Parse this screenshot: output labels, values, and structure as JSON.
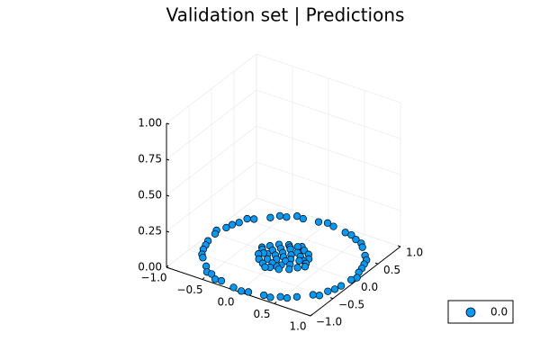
{
  "chart_data": {
    "type": "scatter",
    "title": "Validation set | Predictions",
    "xlabel": "",
    "ylabel": "",
    "zlabel": "",
    "xlim": [
      -1.0,
      1.0
    ],
    "ylim": [
      -1.0,
      1.0
    ],
    "zlim": [
      0.0,
      1.0
    ],
    "x_ticks": [
      "−1.0",
      "−0.5",
      "0.0",
      "0.5",
      "1.0"
    ],
    "y_ticks": [
      "−1.0",
      "−0.5",
      "0.0",
      "0.5",
      "1.0"
    ],
    "z_ticks": [
      "0.00",
      "0.25",
      "0.50",
      "0.75",
      "1.00"
    ],
    "grid": true,
    "legend_position": "bottom-right",
    "series": [
      {
        "name": "0.0",
        "color": "#009af9",
        "points": [
          [
            0.94,
            0.0,
            0
          ],
          [
            0.92,
            0.2,
            0
          ],
          [
            0.87,
            0.4,
            0
          ],
          [
            0.77,
            0.58,
            0
          ],
          [
            0.64,
            0.73,
            0
          ],
          [
            0.48,
            0.84,
            0
          ],
          [
            0.29,
            0.91,
            0
          ],
          [
            0.1,
            0.95,
            0
          ],
          [
            -0.1,
            0.94,
            0
          ],
          [
            -0.29,
            0.9,
            0
          ],
          [
            -0.47,
            0.82,
            0
          ],
          [
            -0.62,
            0.7,
            0
          ],
          [
            -0.76,
            0.56,
            0
          ],
          [
            -0.86,
            0.39,
            0
          ],
          [
            -0.92,
            0.2,
            0
          ],
          [
            -0.95,
            0.0,
            0
          ],
          [
            -0.93,
            -0.19,
            0
          ],
          [
            -0.87,
            -0.39,
            0
          ],
          [
            -0.77,
            -0.56,
            0
          ],
          [
            -0.63,
            -0.71,
            0
          ],
          [
            -0.48,
            -0.83,
            0
          ],
          [
            -0.3,
            -0.9,
            0
          ],
          [
            -0.1,
            -0.95,
            0
          ],
          [
            0.1,
            -0.94,
            0
          ],
          [
            0.29,
            -0.9,
            0
          ],
          [
            0.47,
            -0.82,
            0
          ],
          [
            0.63,
            -0.71,
            0
          ],
          [
            0.76,
            -0.56,
            0
          ],
          [
            0.86,
            -0.39,
            0
          ],
          [
            0.92,
            -0.19,
            0
          ],
          [
            0.97,
            0.08,
            0
          ],
          [
            0.84,
            0.5,
            0
          ],
          [
            0.58,
            0.8,
            0
          ],
          [
            0.0,
            0.98,
            0
          ],
          [
            -0.55,
            0.8,
            0
          ],
          [
            -0.83,
            0.52,
            0
          ],
          [
            -0.98,
            0.08,
            0
          ],
          [
            -0.82,
            -0.5,
            0
          ],
          [
            -0.55,
            -0.82,
            0
          ],
          [
            0.02,
            -0.97,
            0
          ],
          [
            0.55,
            -0.8,
            0
          ],
          [
            0.83,
            -0.53,
            0
          ],
          [
            0.9,
            0.3,
            0
          ],
          [
            0.38,
            0.9,
            0
          ],
          [
            -0.38,
            0.91,
            0
          ],
          [
            -0.9,
            0.3,
            0
          ],
          [
            -0.9,
            -0.29,
            0
          ],
          [
            -0.38,
            -0.91,
            0
          ],
          [
            0.38,
            -0.9,
            0
          ],
          [
            0.9,
            -0.3,
            0
          ],
          [
            0.3,
            0.02,
            0
          ],
          [
            0.27,
            0.13,
            0
          ],
          [
            0.21,
            0.22,
            0
          ],
          [
            0.12,
            0.27,
            0
          ],
          [
            0.01,
            0.3,
            0
          ],
          [
            -0.1,
            0.28,
            0
          ],
          [
            -0.2,
            0.22,
            0
          ],
          [
            -0.27,
            0.13,
            0
          ],
          [
            -0.3,
            0.01,
            0
          ],
          [
            -0.28,
            -0.11,
            0
          ],
          [
            -0.21,
            -0.21,
            0
          ],
          [
            -0.12,
            -0.27,
            0
          ],
          [
            0.0,
            -0.3,
            0
          ],
          [
            0.11,
            -0.28,
            0
          ],
          [
            0.21,
            -0.21,
            0
          ],
          [
            0.27,
            -0.12,
            0
          ],
          [
            0.2,
            0.03,
            0
          ],
          [
            0.16,
            0.12,
            0
          ],
          [
            0.08,
            0.18,
            0
          ],
          [
            -0.03,
            0.2,
            0
          ],
          [
            -0.13,
            0.15,
            0
          ],
          [
            -0.19,
            0.06,
            0
          ],
          [
            -0.19,
            -0.05,
            0
          ],
          [
            -0.13,
            -0.15,
            0
          ],
          [
            -0.03,
            -0.2,
            0
          ],
          [
            0.08,
            -0.18,
            0
          ],
          [
            0.16,
            -0.11,
            0
          ],
          [
            0.1,
            0.0,
            0
          ],
          [
            0.05,
            0.09,
            0
          ],
          [
            -0.06,
            0.08,
            0
          ],
          [
            -0.1,
            -0.02,
            0
          ],
          [
            -0.04,
            -0.09,
            0
          ],
          [
            0.07,
            -0.07,
            0
          ],
          [
            0.0,
            0.0,
            0
          ],
          [
            0.24,
            0.06,
            0
          ],
          [
            -0.06,
            0.24,
            0
          ],
          [
            -0.24,
            -0.06,
            0
          ],
          [
            0.06,
            -0.24,
            0
          ],
          [
            0.33,
            -0.05,
            0
          ],
          [
            -0.05,
            -0.33,
            0
          ],
          [
            -0.33,
            0.05,
            0
          ],
          [
            0.05,
            0.33,
            0
          ]
        ]
      }
    ]
  }
}
